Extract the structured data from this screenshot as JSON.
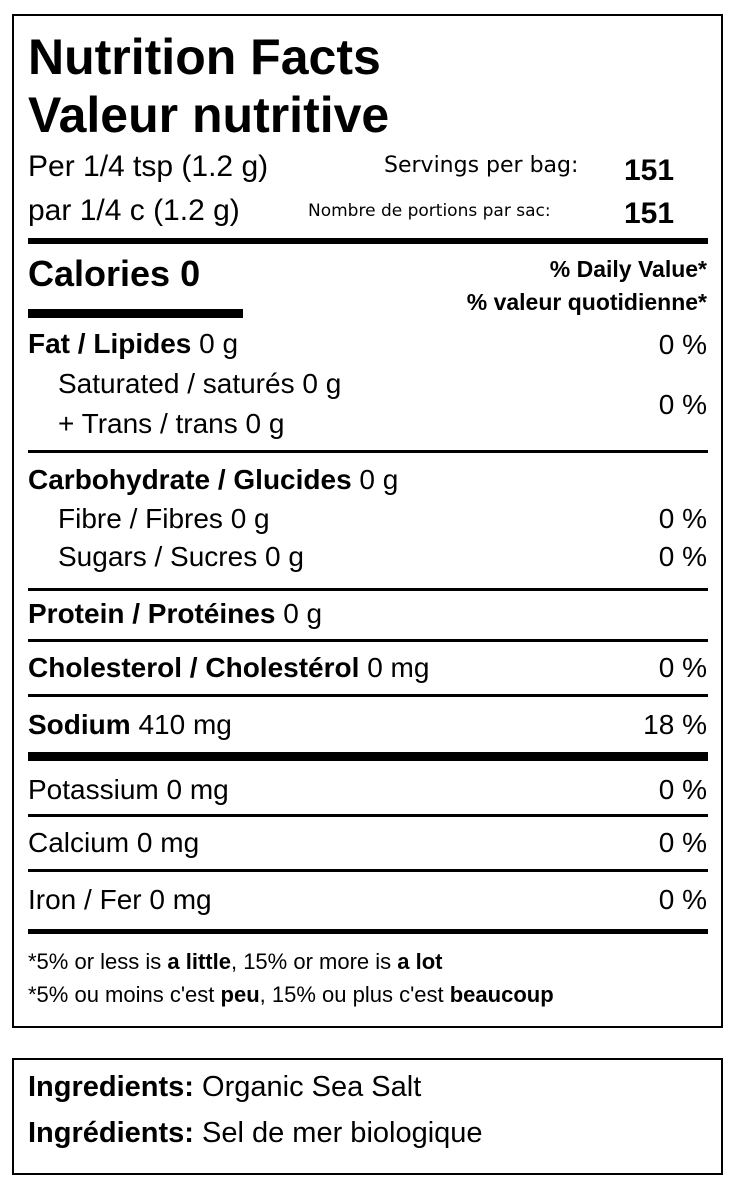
{
  "title_en": "Nutrition Facts",
  "title_fr": "Valeur nutritive",
  "serving_en": "Per 1/4 tsp (1.2 g)",
  "serving_fr": "par 1/4 c (1.2 g)",
  "servings_en_label": "Servings per bag:",
  "servings_fr_label": "Nombre de portions par sac:",
  "servings_value": "151",
  "calories": "Calories 0",
  "dv_en": "% Daily Value*",
  "dv_fr": "% valeur quotidienne*",
  "rows": {
    "fat": {
      "label": "Fat / Lipides",
      "amount": "0 g",
      "dv": "0 %"
    },
    "saturated": {
      "label": "Saturated / saturés 0 g"
    },
    "trans": {
      "label": "+ Trans / trans 0 g",
      "dv": "0 %"
    },
    "carb": {
      "label": "Carbohydrate / Glucides",
      "amount": "0 g"
    },
    "fibre": {
      "label": "Fibre / Fibres 0 g",
      "dv": "0 %"
    },
    "sugars": {
      "label": "Sugars / Sucres 0 g",
      "dv": "0 %"
    },
    "protein": {
      "label": "Protein / Protéines",
      "amount": "0 g"
    },
    "cholesterol": {
      "label": "Cholesterol / Cholestérol",
      "amount": "0 mg",
      "dv": "0 %"
    },
    "sodium": {
      "label": "Sodium",
      "amount": "410 mg",
      "dv": "18 %"
    },
    "potassium": {
      "label": "Potassium 0 mg",
      "dv": "0 %"
    },
    "calcium": {
      "label": "Calcium 0 mg",
      "dv": "0 %"
    },
    "iron": {
      "label": "Iron / Fer 0 mg",
      "dv": "0 %"
    }
  },
  "footnote_en": {
    "a": "*5% or less is ",
    "b": "a little",
    "c": ", 15% or more is ",
    "d": "a lot"
  },
  "footnote_fr": {
    "a": "*5% ou moins c'est ",
    "b": "peu",
    "c": ", 15% ou plus c'est ",
    "d": "beaucoup"
  },
  "ingredients_en": {
    "label": "Ingredients:",
    "value": " Organic Sea Salt"
  },
  "ingredients_fr": {
    "label": "Ingrédients:",
    "value": " Sel de mer biologique"
  }
}
